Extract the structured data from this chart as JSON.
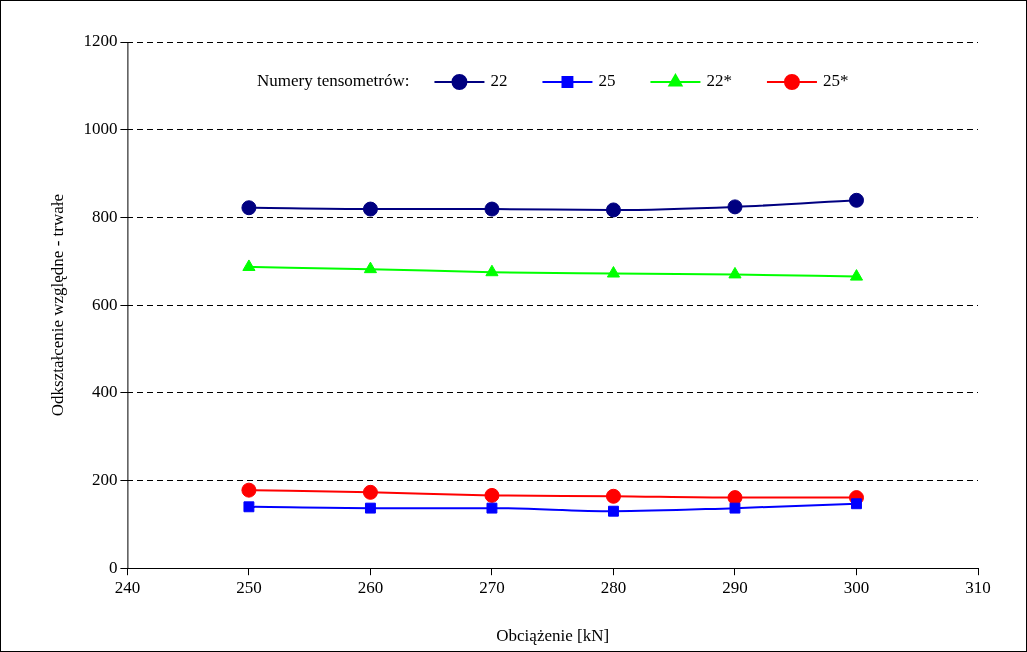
{
  "chart_data": {
    "type": "line",
    "xlabel": "Obciążenie [kN]",
    "ylabel": "Odkształcenie względne - trwałe",
    "legend_title": "Numery tensometrów:",
    "x": [
      250,
      260,
      270,
      280,
      290,
      300
    ],
    "series": [
      {
        "name": "22",
        "color": "#000080",
        "marker": "circle",
        "values": [
          822,
          819,
          819,
          817,
          824,
          839
        ]
      },
      {
        "name": "25",
        "color": "#0000ff",
        "marker": "square",
        "values": [
          140,
          137,
          137,
          130,
          137,
          147
        ]
      },
      {
        "name": "22*",
        "color": "#00ff00",
        "marker": "triangle",
        "values": [
          687,
          682,
          675,
          672,
          670,
          665
        ]
      },
      {
        "name": "25*",
        "color": "#ff0000",
        "marker": "circle",
        "values": [
          178,
          173,
          166,
          164,
          161,
          161
        ]
      }
    ],
    "xlim": [
      240,
      310
    ],
    "xticks": [
      240,
      250,
      260,
      270,
      280,
      290,
      300,
      310
    ],
    "ylim": [
      0,
      1200
    ],
    "yticks": [
      0,
      200,
      400,
      600,
      800,
      1000,
      1200
    ],
    "grid": "y",
    "legend": "top",
    "line_style": "solid"
  }
}
